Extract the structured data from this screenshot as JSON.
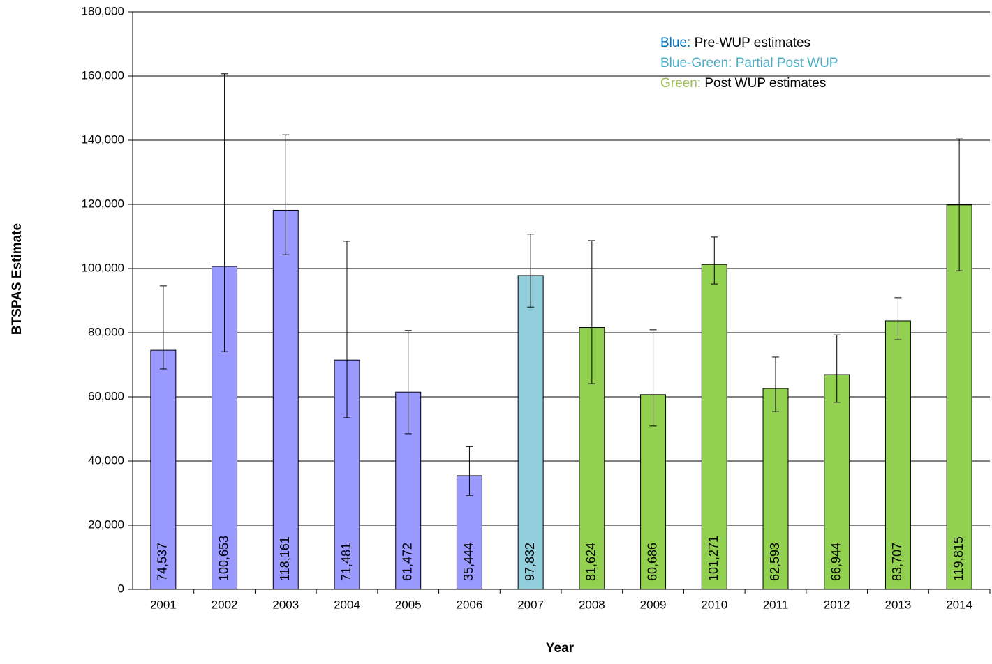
{
  "chart_data": {
    "type": "bar",
    "y_label": "BTSPAS Estimate",
    "x_label": "Year",
    "categories": [
      "2001",
      "2002",
      "2003",
      "2004",
      "2005",
      "2006",
      "2007",
      "2008",
      "2009",
      "2010",
      "2011",
      "2012",
      "2013",
      "2014"
    ],
    "series": [
      {
        "values": [
          74537,
          100653,
          118161,
          71481,
          61472,
          35444,
          97832,
          81624,
          60686,
          101271,
          62593,
          66944,
          83707,
          119815
        ],
        "value_labels": [
          "74,537",
          "100,653",
          "118,161",
          "71,481",
          "61,472",
          "35,444",
          "97,832",
          "81,624",
          "60,686",
          "101,271",
          "62,593",
          "66,944",
          "83,707",
          "119,815"
        ],
        "lower": [
          68700,
          74100,
          104300,
          53500,
          48500,
          29300,
          88000,
          64100,
          50900,
          95200,
          55400,
          58300,
          77800,
          99300
        ],
        "upper": [
          94600,
          160700,
          141700,
          108500,
          80700,
          44500,
          110700,
          108700,
          80900,
          109800,
          72400,
          79300,
          90900,
          140400
        ],
        "colors": [
          "#9999ff",
          "#9999ff",
          "#9999ff",
          "#9999ff",
          "#9999ff",
          "#9999ff",
          "#92cddc",
          "#92d050",
          "#92d050",
          "#92d050",
          "#92d050",
          "#92d050",
          "#92d050",
          "#92d050"
        ]
      }
    ],
    "ylim": [
      0,
      180000
    ],
    "yticks": [
      0,
      {
        "value": 20000,
        "label": "20,000"
      },
      {
        "value": 40000,
        "label": "40,000"
      },
      {
        "value": 60000,
        "label": "60,000"
      },
      {
        "value": 80000,
        "label": "80,000"
      },
      {
        "value": 100000,
        "label": "100,000"
      },
      {
        "value": 120000,
        "label": "120,000"
      },
      {
        "value": 140000,
        "label": "140,000"
      },
      {
        "value": 160000,
        "label": "160,000"
      },
      {
        "value": 180000,
        "label": "180,000"
      }
    ],
    "grid": true,
    "annotations": [
      {
        "key": "Blue:",
        "text": "Pre-WUP  estimates",
        "color": "#0070c0"
      },
      {
        "key": "Blue-Green: Partial Post WUP",
        "text": "",
        "color": "#4bacc6"
      },
      {
        "key": "Green:",
        "text": "Post WUP estimates",
        "color": "#9bbb59"
      }
    ]
  }
}
